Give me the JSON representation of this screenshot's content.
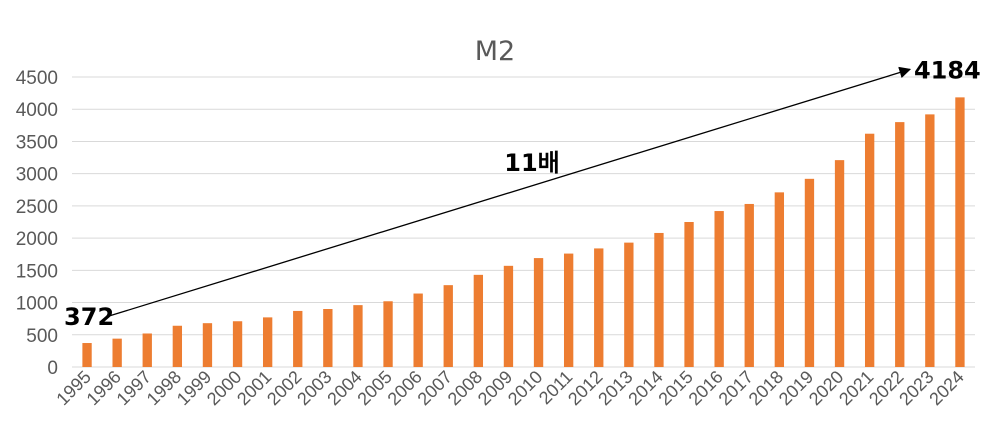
{
  "colors": {
    "bar": "#ED7D31",
    "grid": "#D9D9D9",
    "text": "#595959",
    "annotation": "#000000"
  },
  "chart_data": {
    "type": "bar",
    "title": "M2",
    "xlabel": "",
    "ylabel": "",
    "ylim": [
      0,
      4500
    ],
    "yticks": [
      0,
      500,
      1000,
      1500,
      2000,
      2500,
      3000,
      3500,
      4000,
      4500
    ],
    "grid": true,
    "legend": "none",
    "categories": [
      "1995",
      "1996",
      "1997",
      "1998",
      "1999",
      "2000",
      "2001",
      "2002",
      "2003",
      "2004",
      "2005",
      "2006",
      "2007",
      "2008",
      "2009",
      "2010",
      "2011",
      "2012",
      "2013",
      "2014",
      "2015",
      "2016",
      "2017",
      "2018",
      "2019",
      "2020",
      "2021",
      "2022",
      "2023",
      "2024"
    ],
    "values": [
      372,
      440,
      520,
      640,
      680,
      710,
      770,
      870,
      900,
      960,
      1020,
      1140,
      1270,
      1430,
      1570,
      1690,
      1760,
      1840,
      1930,
      2080,
      2250,
      2420,
      2530,
      2710,
      2920,
      3210,
      3620,
      3800,
      3920,
      4184
    ],
    "annotations": {
      "start_label": "372",
      "end_label": "4184",
      "growth_label": "11배",
      "arrow": {
        "from_category": "1995",
        "to_category": "2024"
      }
    }
  }
}
